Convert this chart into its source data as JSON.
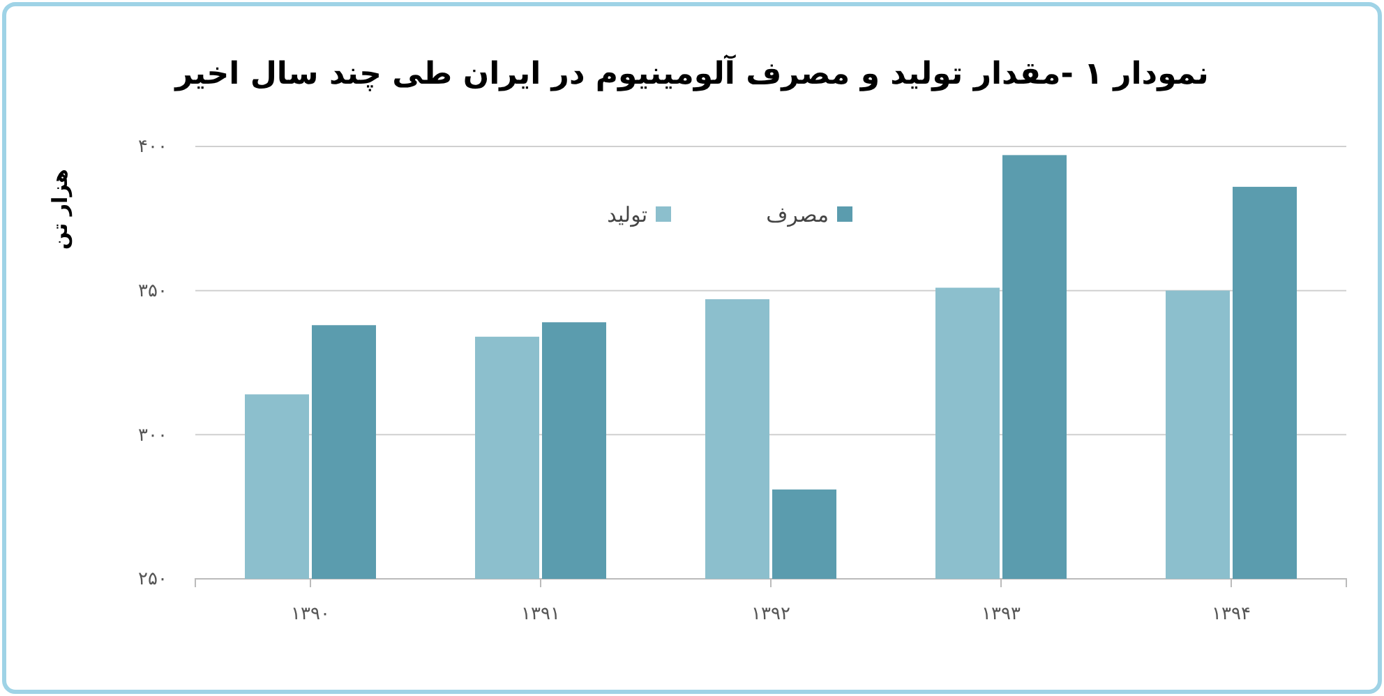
{
  "chart_data": {
    "type": "bar",
    "title": "نمودار ۱ -مقدار تولید و مصرف آلومینیوم در ایران طی چند سال اخیر",
    "ylabel": "هزار تن",
    "categories": [
      "۱۳۹۰",
      "۱۳۹۱",
      "۱۳۹۲",
      "۱۳۹۳",
      "۱۳۹۴"
    ],
    "series": [
      {
        "name": "تولید",
        "color": "#8cbfcd",
        "values": [
          314,
          334,
          347,
          351,
          350
        ]
      },
      {
        "name": "مصرف",
        "color": "#5b9cae",
        "values": [
          338,
          339,
          281,
          397,
          386
        ]
      }
    ],
    "ylim": [
      250,
      400
    ],
    "yticks": [
      {
        "value": 250,
        "label": "۲۵۰"
      },
      {
        "value": 300,
        "label": "۳۰۰"
      },
      {
        "value": 350,
        "label": "۳۵۰"
      },
      {
        "value": 400,
        "label": "۴۰۰"
      }
    ],
    "grid": "y",
    "legend": "top"
  }
}
